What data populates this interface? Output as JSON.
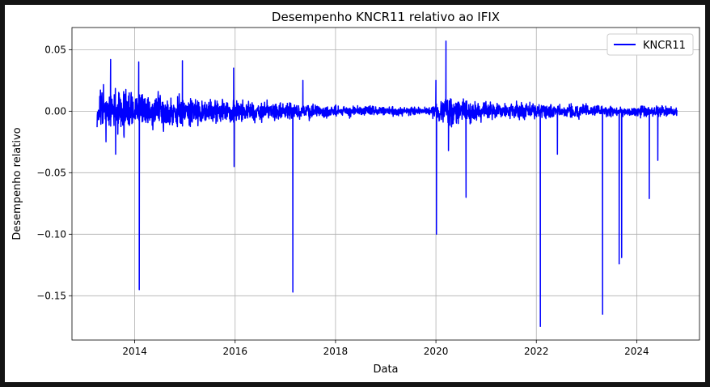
{
  "chart_data": {
    "type": "line",
    "title": "Desempenho KNCR11 relativo ao IFIX",
    "xlabel": "Data",
    "ylabel": "Desempenho relativo",
    "xlim": [
      2012.75,
      2025.25
    ],
    "ylim": [
      -0.186,
      0.068
    ],
    "x_ticks": [
      {
        "value": 2014,
        "label": "2014"
      },
      {
        "value": 2016,
        "label": "2016"
      },
      {
        "value": 2018,
        "label": "2018"
      },
      {
        "value": 2020,
        "label": "2020"
      },
      {
        "value": 2022,
        "label": "2022"
      },
      {
        "value": 2024,
        "label": "2024"
      }
    ],
    "y_ticks": [
      {
        "value": 0.05,
        "label": "0.05"
      },
      {
        "value": 0.0,
        "label": "0.00"
      },
      {
        "value": -0.05,
        "label": "−0.05"
      },
      {
        "value": -0.1,
        "label": "−0.10"
      },
      {
        "value": -0.15,
        "label": "−0.15"
      }
    ],
    "grid": true,
    "legend_position": "top-right",
    "series": [
      {
        "name": "KNCR11",
        "color": "#0000ff",
        "x_start": 2013.25,
        "x_end": 2024.8,
        "envelope": [
          {
            "x": 2013.3,
            "amplitude": 0.022
          },
          {
            "x": 2013.8,
            "amplitude": 0.02
          },
          {
            "x": 2014.3,
            "amplitude": 0.017
          },
          {
            "x": 2015.0,
            "amplitude": 0.015
          },
          {
            "x": 2015.5,
            "amplitude": 0.012
          },
          {
            "x": 2016.0,
            "amplitude": 0.01
          },
          {
            "x": 2017.0,
            "amplitude": 0.008
          },
          {
            "x": 2018.0,
            "amplitude": 0.006
          },
          {
            "x": 2019.0,
            "amplitude": 0.004
          },
          {
            "x": 2019.9,
            "amplitude": 0.004
          },
          {
            "x": 2020.2,
            "amplitude": 0.016
          },
          {
            "x": 2020.7,
            "amplitude": 0.01
          },
          {
            "x": 2021.5,
            "amplitude": 0.008
          },
          {
            "x": 2022.5,
            "amplitude": 0.007
          },
          {
            "x": 2023.5,
            "amplitude": 0.005
          },
          {
            "x": 2024.8,
            "amplitude": 0.005
          }
        ],
        "extremes": [
          {
            "x": 2013.52,
            "y": 0.042
          },
          {
            "x": 2013.62,
            "y": -0.035
          },
          {
            "x": 2014.08,
            "y": 0.04
          },
          {
            "x": 2014.09,
            "y": -0.145
          },
          {
            "x": 2014.95,
            "y": 0.041
          },
          {
            "x": 2015.97,
            "y": 0.035
          },
          {
            "x": 2015.98,
            "y": -0.045
          },
          {
            "x": 2017.15,
            "y": -0.147
          },
          {
            "x": 2017.35,
            "y": 0.025
          },
          {
            "x": 2020.0,
            "y": 0.025
          },
          {
            "x": 2020.01,
            "y": -0.1
          },
          {
            "x": 2020.2,
            "y": 0.057
          },
          {
            "x": 2020.25,
            "y": -0.032
          },
          {
            "x": 2020.6,
            "y": -0.07
          },
          {
            "x": 2022.08,
            "y": -0.175
          },
          {
            "x": 2022.42,
            "y": -0.035
          },
          {
            "x": 2023.32,
            "y": -0.165
          },
          {
            "x": 2023.65,
            "y": -0.124
          },
          {
            "x": 2023.7,
            "y": -0.119
          },
          {
            "x": 2024.25,
            "y": -0.071
          },
          {
            "x": 2024.42,
            "y": -0.04
          }
        ]
      }
    ]
  }
}
